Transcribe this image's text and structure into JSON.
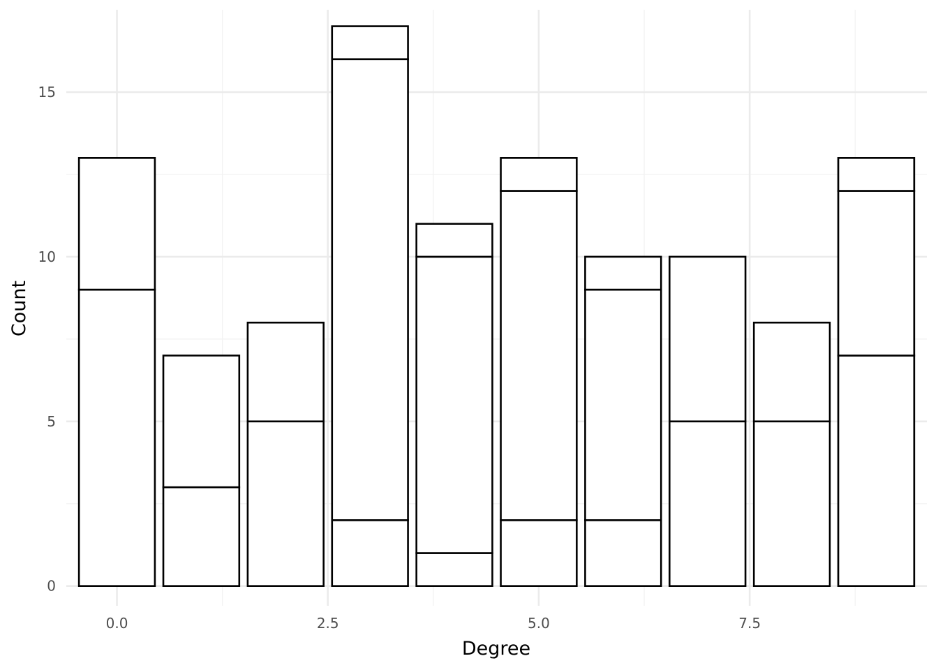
{
  "chart_data": {
    "type": "bar",
    "stacked": true,
    "xlabel": "Degree",
    "ylabel": "Count",
    "x_domain": [
      -0.6,
      9.6
    ],
    "ylim": [
      -0.6,
      17.5
    ],
    "x_ticks": [
      0.0,
      2.5,
      5.0,
      7.5
    ],
    "x_tick_labels": [
      "0.0",
      "2.5",
      "5.0",
      "7.5"
    ],
    "y_ticks": [
      0,
      5,
      10,
      15
    ],
    "y_tick_labels": [
      "0",
      "5",
      "10",
      "15"
    ],
    "bar_width": 0.9,
    "categories": [
      0,
      1,
      2,
      3,
      4,
      5,
      6,
      7,
      8,
      9
    ],
    "segments": [
      [
        9,
        4
      ],
      [
        3,
        4
      ],
      [
        5,
        3
      ],
      [
        2,
        14,
        1
      ],
      [
        1,
        9,
        1
      ],
      [
        2,
        10,
        1
      ],
      [
        2,
        7,
        1
      ],
      [
        5,
        5
      ],
      [
        5,
        3
      ],
      [
        7,
        5,
        1
      ]
    ],
    "totals": [
      13,
      7,
      8,
      17,
      11,
      13,
      10,
      10,
      8,
      13
    ],
    "grid": true,
    "bar_fill": "#ffffff",
    "bar_stroke": "#000000",
    "grid_major_color": "#ebebeb",
    "grid_minor_color": "#f2f2f2",
    "legend": "none"
  }
}
